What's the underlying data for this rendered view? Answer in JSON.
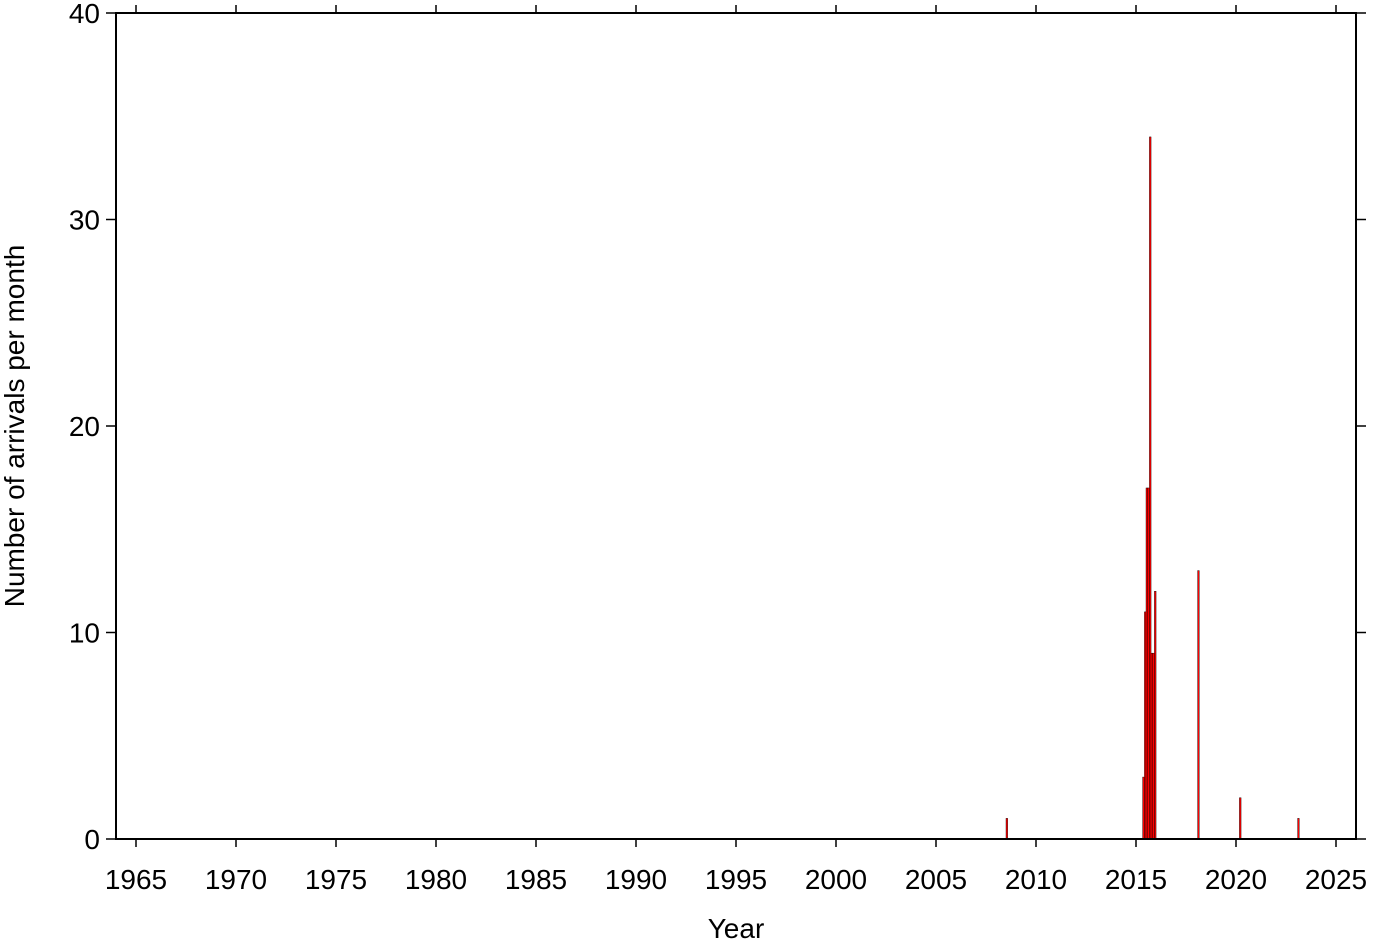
{
  "chart_data": {
    "type": "bar",
    "xlabel": "Year",
    "ylabel": "Number of arrivals per month",
    "x": [
      2008.5,
      2015.33,
      2015.42,
      2015.5,
      2015.58,
      2015.67,
      2015.75,
      2015.83,
      2015.92,
      2018.08,
      2020.17,
      2023.08
    ],
    "values": [
      1,
      3,
      11,
      17,
      17,
      34,
      9,
      9,
      12,
      13,
      2,
      1
    ],
    "color": "#ff0000",
    "xlim": [
      1964,
      2026
    ],
    "xticks": [
      1965,
      1970,
      1975,
      1980,
      1985,
      1990,
      1995,
      2000,
      2005,
      2010,
      2015,
      2020,
      2025
    ],
    "ylim": [
      0,
      40
    ],
    "yticks": [
      0,
      10,
      20,
      30,
      40
    ]
  }
}
